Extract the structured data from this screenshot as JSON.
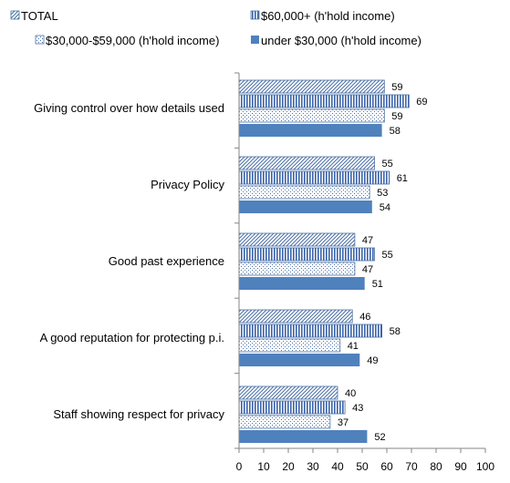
{
  "chart_data": {
    "type": "bar",
    "orientation": "horizontal",
    "categories": [
      "Giving control over how details used",
      "Privacy Policy",
      "Good past experience",
      "A good reputation for protecting p.i.",
      "Staff showing respect for privacy"
    ],
    "series": [
      {
        "name": "TOTAL",
        "values": [
          59,
          55,
          47,
          46,
          40
        ],
        "pattern": "diagonal-hatch",
        "color": "#4a6fa5"
      },
      {
        "name": "$60,000+ (h'hold income)",
        "values": [
          69,
          61,
          55,
          58,
          43
        ],
        "pattern": "vertical-stripes",
        "color": "#3a63a8"
      },
      {
        "name": "$30,000-$59,000 (h'hold income)",
        "values": [
          59,
          53,
          47,
          41,
          37
        ],
        "pattern": "dots",
        "color": "#4a6fa5"
      },
      {
        "name": "under $30,000 (h'hold income)",
        "values": [
          58,
          54,
          51,
          49,
          52
        ],
        "pattern": "solid",
        "color": "#4f81bd"
      }
    ],
    "xlim": [
      0,
      100
    ],
    "xticks": [
      0,
      10,
      20,
      30,
      40,
      50,
      60,
      70,
      80,
      90,
      100
    ],
    "legend_position": "top",
    "grid": false
  }
}
